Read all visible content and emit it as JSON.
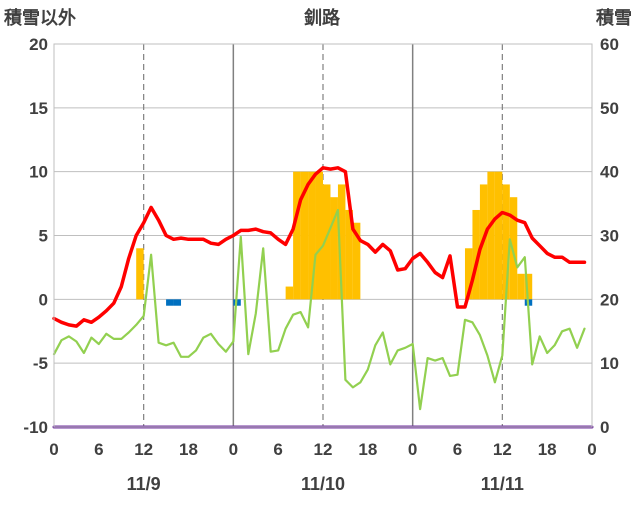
{
  "chart_data": {
    "type": "bar+line",
    "title": "釧路",
    "left_axis_label": "積雪以外",
    "right_axis_label": "積雪",
    "left_ylim": [
      -10,
      20
    ],
    "left_yticks": [
      "20",
      "15",
      "10",
      "5",
      "0",
      "-5",
      "-10"
    ],
    "right_ylim": [
      0,
      60
    ],
    "right_yticks": [
      "60",
      "50",
      "40",
      "30",
      "20",
      "10",
      "0"
    ],
    "xlim": [
      0,
      72
    ],
    "xtick_labels": [
      "0",
      "6",
      "12",
      "18",
      "0",
      "6",
      "12",
      "18",
      "0",
      "6",
      "12",
      "18",
      "0"
    ],
    "day_labels": [
      "11/9",
      "11/10",
      "11/11"
    ],
    "grid": true,
    "colors": {
      "temperature": "#ff0000",
      "wind": "#92d050",
      "snowfall": "#ffc000",
      "precipitation": "#0070c0",
      "snow_depth": "#7030a0",
      "grid": "#808080",
      "axis_text": "#404040"
    },
    "series": [
      {
        "kind": "line",
        "axis": "left",
        "color": "#ff0000",
        "x": [
          0,
          1,
          2,
          3,
          4,
          5,
          6,
          7,
          8,
          9,
          10,
          11,
          12,
          13,
          14,
          15,
          16,
          17,
          18,
          19,
          20,
          21,
          22,
          23,
          24,
          25,
          26,
          27,
          28,
          29,
          30,
          31,
          32,
          33,
          34,
          35,
          36,
          37,
          38,
          39,
          40,
          41,
          42,
          43,
          44,
          45,
          46,
          47,
          48,
          49,
          50,
          51,
          52,
          53,
          54,
          55,
          56,
          57,
          58,
          59,
          60,
          61,
          62,
          63,
          64,
          65,
          66,
          67,
          68,
          69,
          70,
          71
        ],
        "values": [
          -1.5,
          -1.8,
          -2.0,
          -2.1,
          -1.6,
          -1.8,
          -1.4,
          -0.9,
          -0.3,
          1.0,
          3.2,
          5.0,
          6.0,
          7.2,
          6.2,
          5.0,
          4.7,
          4.8,
          4.7,
          4.7,
          4.7,
          4.4,
          4.3,
          4.7,
          5.0,
          5.4,
          5.4,
          5.5,
          5.3,
          5.2,
          4.7,
          4.3,
          5.5,
          7.8,
          9.0,
          9.8,
          10.3,
          10.2,
          10.3,
          10.0,
          5.5,
          4.6,
          4.3,
          3.7,
          4.3,
          3.8,
          2.3,
          2.4,
          3.2,
          3.6,
          2.9,
          2.1,
          1.7,
          3.4,
          -0.6,
          -0.6,
          1.5,
          3.9,
          5.5,
          6.3,
          6.8,
          6.6,
          6.2,
          6.0,
          4.8,
          4.2,
          3.6,
          3.3,
          3.3,
          2.9,
          2.9,
          2.9
        ]
      },
      {
        "kind": "line",
        "axis": "left",
        "color": "#92d050",
        "x": [
          0,
          1,
          2,
          3,
          4,
          5,
          6,
          7,
          8,
          9,
          10,
          11,
          12,
          13,
          14,
          15,
          16,
          17,
          18,
          19,
          20,
          21,
          22,
          23,
          24,
          25,
          26,
          27,
          28,
          29,
          30,
          31,
          32,
          33,
          34,
          35,
          36,
          37,
          38,
          39,
          40,
          41,
          42,
          43,
          44,
          45,
          46,
          47,
          48,
          49,
          50,
          51,
          52,
          53,
          54,
          55,
          56,
          57,
          58,
          59,
          60,
          61,
          62,
          63,
          64,
          65,
          66,
          67,
          68,
          69,
          70,
          71
        ],
        "values": [
          -4.3,
          -3.2,
          -2.9,
          -3.3,
          -4.2,
          -3.0,
          -3.5,
          -2.7,
          -3.1,
          -3.1,
          -2.6,
          -2.0,
          -1.3,
          3.5,
          -3.4,
          -3.6,
          -3.4,
          -4.5,
          -4.5,
          -4.0,
          -3.0,
          -2.7,
          -3.5,
          -4.1,
          -3.3,
          4.9,
          -4.3,
          -1.1,
          4.0,
          -4.1,
          -4.0,
          -2.3,
          -1.2,
          -1.0,
          -2.2,
          3.5,
          4.2,
          5.6,
          7.0,
          -6.3,
          -6.9,
          -6.5,
          -5.5,
          -3.6,
          -2.6,
          -5.1,
          -4.0,
          -3.8,
          -3.5,
          -8.6,
          -4.6,
          -4.8,
          -4.6,
          -6.0,
          -5.9,
          -1.6,
          -1.8,
          -2.8,
          -4.4,
          -6.5,
          -4.4,
          4.7,
          2.5,
          3.3,
          -5.1,
          -2.9,
          -4.2,
          -3.6,
          -2.5,
          -2.3,
          -3.8,
          -2.3
        ]
      },
      {
        "kind": "bar",
        "axis": "left",
        "color": "#ffc000",
        "x": [
          11,
          31,
          32,
          33,
          34,
          35,
          36,
          37,
          38,
          39,
          40,
          55,
          56,
          57,
          58,
          59,
          60,
          61,
          62,
          63
        ],
        "values": [
          4,
          1,
          10,
          10,
          10,
          10,
          9,
          8,
          9,
          7,
          6,
          4,
          7,
          9,
          10,
          10,
          9,
          8,
          2,
          2
        ]
      },
      {
        "kind": "bar",
        "axis": "left",
        "color": "#0070c0",
        "x": [
          15,
          16,
          24,
          63
        ],
        "values": [
          -0.5,
          -0.5,
          -0.5,
          -0.5
        ]
      },
      {
        "kind": "line",
        "axis": "right",
        "color": "#7030a0",
        "x": [
          0,
          72
        ],
        "values": [
          0,
          0
        ]
      }
    ]
  }
}
